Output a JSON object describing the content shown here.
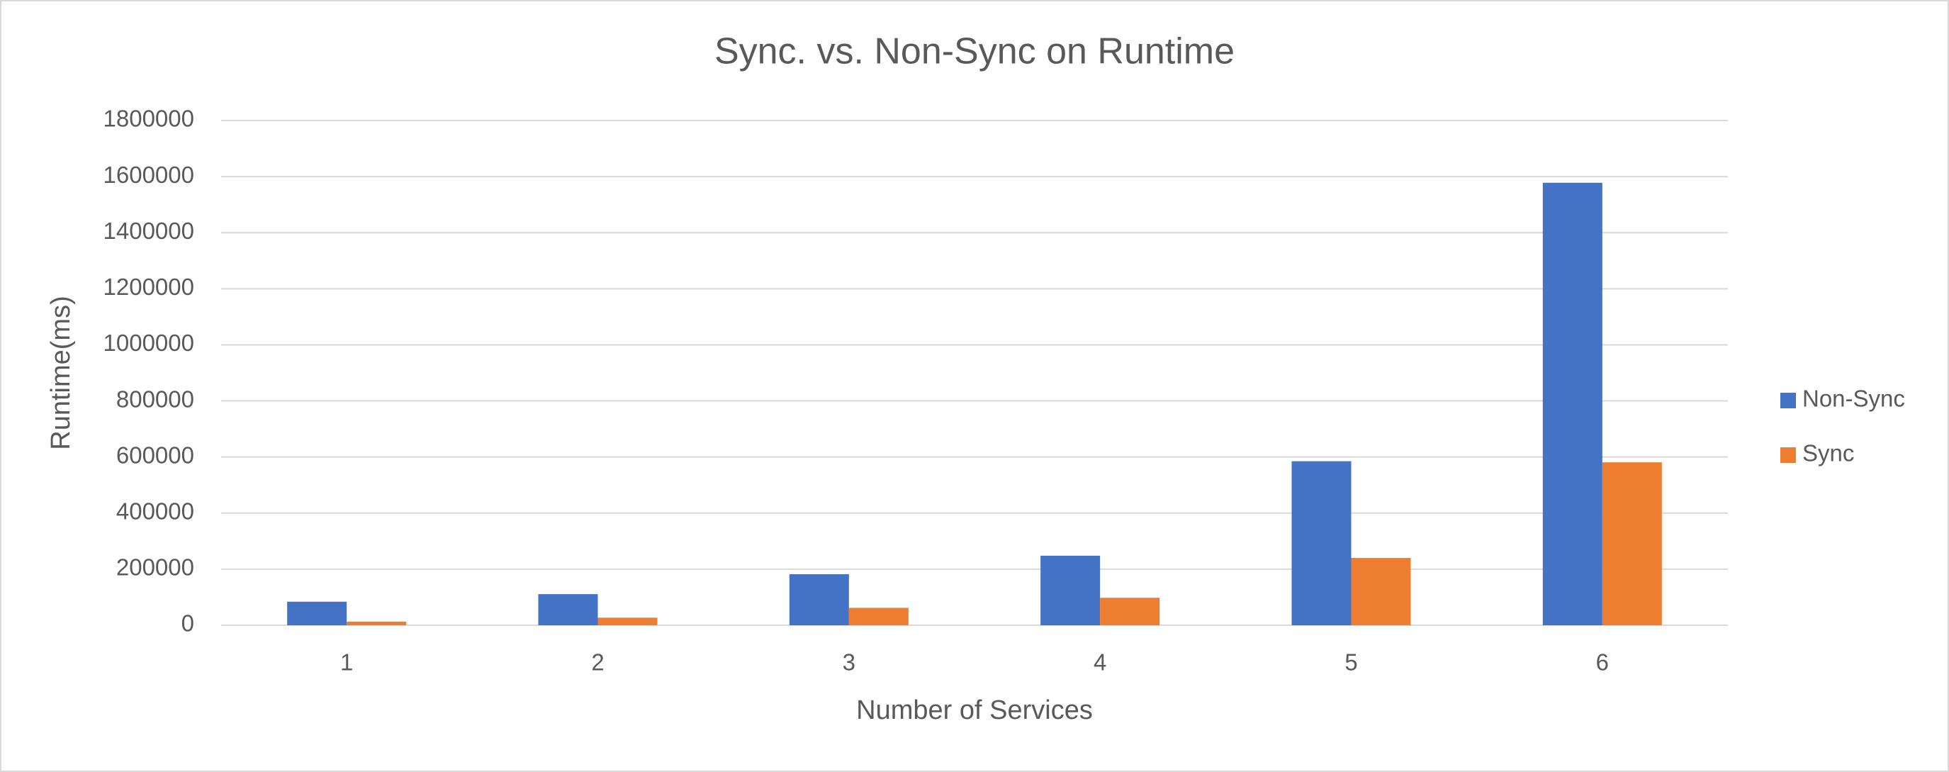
{
  "chart_data": {
    "type": "bar",
    "title": "Sync. vs. Non-Sync on Runtime",
    "x_label": "Number of Services",
    "y_label": "Runtime(ms)",
    "categories": [
      "1",
      "2",
      "3",
      "4",
      "5",
      "6"
    ],
    "series": [
      {
        "name": "Non-Sync",
        "color": "#4472c4",
        "values": [
          84000,
          111000,
          182000,
          248000,
          585000,
          1578000
        ]
      },
      {
        "name": "Sync",
        "color": "#ed7d31",
        "values": [
          13000,
          27000,
          62000,
          98000,
          240000,
          581000
        ]
      }
    ],
    "ylim": [
      0,
      1800000
    ],
    "yticks": [
      0,
      200000,
      400000,
      600000,
      800000,
      1000000,
      1200000,
      1400000,
      1600000,
      1800000
    ],
    "grid": true,
    "legend": "right"
  }
}
